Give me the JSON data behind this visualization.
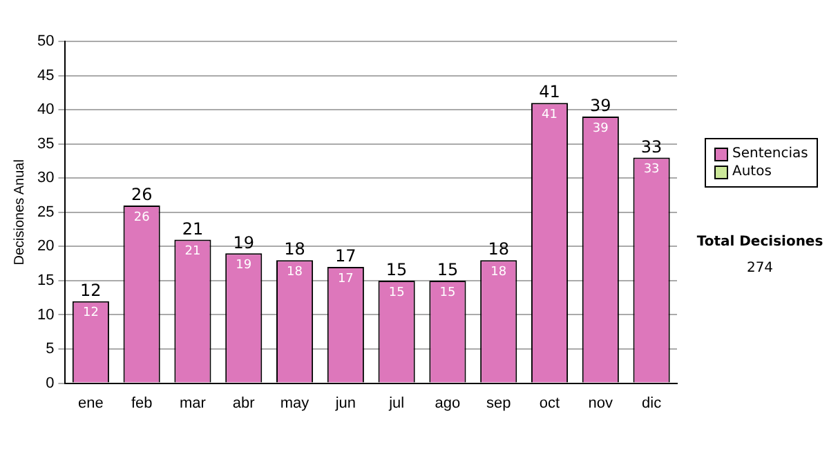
{
  "chart_data": {
    "type": "bar",
    "ylabel": "Decisiones Anual",
    "categories": [
      "ene",
      "feb",
      "mar",
      "abr",
      "may",
      "jun",
      "jul",
      "ago",
      "sep",
      "oct",
      "nov",
      "dic"
    ],
    "series": [
      {
        "name": "Sentencias",
        "color": "#dd77bb",
        "values": [
          12,
          26,
          21,
          19,
          18,
          17,
          15,
          15,
          18,
          41,
          39,
          33
        ],
        "value_labels": [
          "12",
          "26",
          "21",
          "19",
          "18",
          "17",
          "15",
          "15",
          "18",
          "41",
          "39",
          "33"
        ]
      },
      {
        "name": "Autos",
        "color": "#cce899",
        "values": [
          0,
          0,
          0,
          0,
          0,
          0,
          0,
          0,
          0,
          0,
          0,
          0
        ]
      }
    ],
    "stacked": true,
    "totals": [
      "12",
      "26",
      "21",
      "19",
      "18",
      "17",
      "15",
      "15",
      "18",
      "41",
      "39",
      "33"
    ],
    "ylim": [
      0,
      50
    ],
    "yticks": [
      0,
      5,
      10,
      15,
      20,
      25,
      30,
      35,
      40,
      45,
      50
    ],
    "grid": "y",
    "legend": "right",
    "annotations": [
      "Total Decisiones",
      "274"
    ]
  }
}
